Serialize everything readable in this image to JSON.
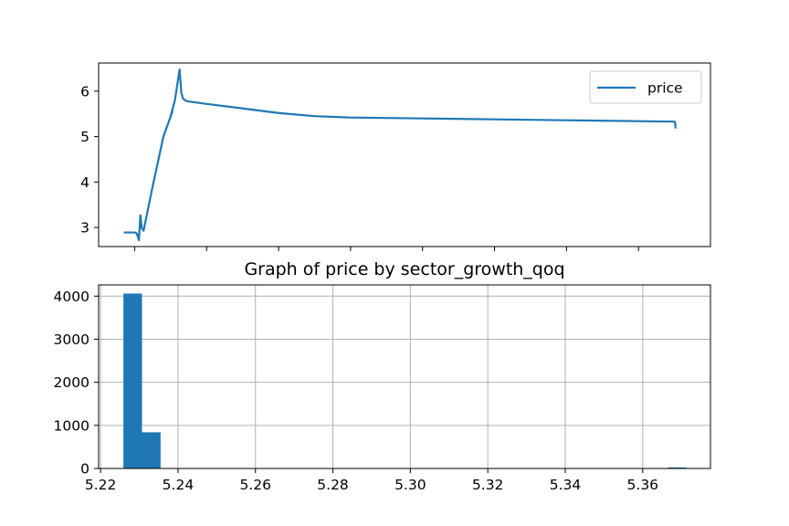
{
  "chart_data": [
    {
      "type": "line",
      "title": "",
      "xlabel": "",
      "ylabel": "",
      "legend": {
        "placement": "top-right",
        "entries": [
          "price"
        ]
      },
      "grid": false,
      "xlim": [
        -1,
        16
      ],
      "ylim": [
        2.58,
        6.62
      ],
      "yticks": [
        3,
        4,
        5,
        6
      ],
      "xticks": [
        0,
        2,
        4,
        6,
        8,
        10,
        12,
        14
      ],
      "x_tick_labels_shown": false,
      "series": [
        {
          "name": "price",
          "color": "#1f77b4",
          "points": [
            [
              -0.3,
              2.89
            ],
            [
              0.0,
              2.89
            ],
            [
              0.06,
              2.87
            ],
            [
              0.12,
              2.72
            ],
            [
              0.16,
              3.27
            ],
            [
              0.2,
              2.98
            ],
            [
              0.25,
              2.93
            ],
            [
              0.28,
              3.05
            ],
            [
              0.5,
              3.9
            ],
            [
              0.8,
              5.0
            ],
            [
              1.05,
              5.55
            ],
            [
              1.0,
              5.45
            ],
            [
              1.12,
              5.8
            ],
            [
              1.25,
              6.48
            ],
            [
              1.3,
              5.95
            ],
            [
              1.35,
              5.83
            ],
            [
              1.45,
              5.78
            ],
            [
              2.0,
              5.72
            ],
            [
              3.0,
              5.62
            ],
            [
              4.0,
              5.52
            ],
            [
              5.0,
              5.45
            ],
            [
              6.0,
              5.42
            ],
            [
              8.0,
              5.4
            ],
            [
              10.0,
              5.38
            ],
            [
              12.0,
              5.36
            ],
            [
              14.0,
              5.34
            ],
            [
              15.0,
              5.33
            ],
            [
              15.02,
              5.3
            ],
            [
              15.03,
              5.18
            ]
          ]
        }
      ]
    },
    {
      "type": "bar",
      "title": "Graph of price by sector_growth_qoq",
      "xlabel": "",
      "ylabel": "",
      "grid": true,
      "xlim": [
        5.2195,
        5.3775
      ],
      "ylim": [
        0,
        4260
      ],
      "xticks": [
        5.22,
        5.24,
        5.26,
        5.28,
        5.3,
        5.32,
        5.34,
        5.36
      ],
      "xtick_labels": [
        "5.22",
        "5.24",
        "5.26",
        "5.28",
        "5.30",
        "5.32",
        "5.34",
        "5.36"
      ],
      "yticks": [
        0,
        1000,
        2000,
        3000,
        4000
      ],
      "ytick_labels": [
        "0",
        "1000",
        "2000",
        "3000",
        "4000"
      ],
      "color": "#1f77b4",
      "bins": [
        {
          "x0": 5.2259,
          "x1": 5.2307,
          "value": 4060
        },
        {
          "x0": 5.2307,
          "x1": 5.2355,
          "value": 840
        },
        {
          "x0": 5.3665,
          "x1": 5.3713,
          "value": 25
        }
      ]
    }
  ]
}
